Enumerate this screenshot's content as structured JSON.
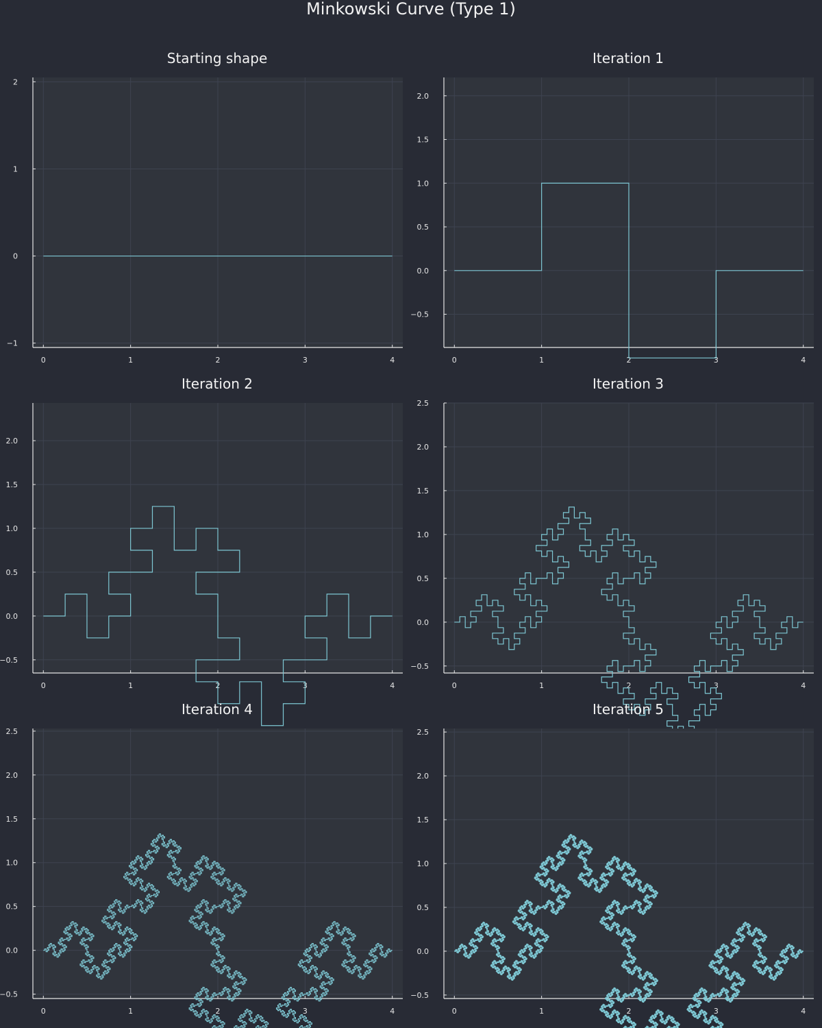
{
  "figure": {
    "title": "Minkowski Curve (Type 1)"
  },
  "colors": {
    "background": "#282b35",
    "plot_area": "#30343c",
    "line": "#7ec8d4",
    "grid": "#3e4350",
    "axis": "#e6e6e6"
  },
  "chart_data": [
    {
      "type": "line",
      "title": "Starting shape",
      "iteration": 0,
      "xlim": [
        -0.12,
        4.12
      ],
      "ylim": [
        -1.05,
        2.05
      ],
      "xticks": [
        0,
        1,
        2,
        3,
        4
      ],
      "xtick_labels": [
        "0",
        "1",
        "2",
        "3",
        "4"
      ],
      "yticks": [
        -1,
        0,
        1,
        2
      ],
      "ytick_labels": [
        "−1",
        "0",
        "1",
        "2"
      ],
      "grid": true,
      "series": [
        {
          "generator": "minkowski-type1",
          "iterations": 0,
          "x_start": 0,
          "x_end": 4
        }
      ]
    },
    {
      "type": "line",
      "title": "Iteration 1",
      "iteration": 1,
      "xlim": [
        -0.12,
        4.12
      ],
      "ylim": [
        -0.88,
        2.21
      ],
      "xticks": [
        0,
        1,
        2,
        3,
        4
      ],
      "xtick_labels": [
        "0",
        "1",
        "2",
        "3",
        "4"
      ],
      "yticks": [
        -0.5,
        0,
        0.5,
        1,
        1.5,
        2
      ],
      "ytick_labels": [
        "−0.5",
        "0.0",
        "0.5",
        "1.0",
        "1.5",
        "2.0"
      ],
      "grid": true,
      "series": [
        {
          "generator": "minkowski-type1",
          "iterations": 1,
          "x_start": 0,
          "x_end": 4
        }
      ]
    },
    {
      "type": "line",
      "title": "Iteration 2",
      "iteration": 2,
      "xlim": [
        -0.12,
        4.12
      ],
      "ylim": [
        -0.65,
        2.43
      ],
      "xticks": [
        0,
        1,
        2,
        3,
        4
      ],
      "xtick_labels": [
        "0",
        "1",
        "2",
        "3",
        "4"
      ],
      "yticks": [
        -0.5,
        0,
        0.5,
        1,
        1.5,
        2
      ],
      "ytick_labels": [
        "−0.5",
        "0.0",
        "0.5",
        "1.0",
        "1.5",
        "2.0"
      ],
      "grid": true,
      "series": [
        {
          "generator": "minkowski-type1",
          "iterations": 2,
          "x_start": 0,
          "x_end": 4
        }
      ]
    },
    {
      "type": "line",
      "title": "Iteration 3",
      "iteration": 3,
      "xlim": [
        -0.12,
        4.12
      ],
      "ylim": [
        -0.58,
        2.5
      ],
      "xticks": [
        0,
        1,
        2,
        3,
        4
      ],
      "xtick_labels": [
        "0",
        "1",
        "2",
        "3",
        "4"
      ],
      "yticks": [
        -0.5,
        0,
        0.5,
        1,
        1.5,
        2,
        2.5
      ],
      "ytick_labels": [
        "−0.5",
        "0.0",
        "0.5",
        "1.0",
        "1.5",
        "2.0",
        "2.5"
      ],
      "grid": true,
      "series": [
        {
          "generator": "minkowski-type1",
          "iterations": 3,
          "x_start": 0,
          "x_end": 4
        }
      ]
    },
    {
      "type": "line",
      "title": "Iteration 4",
      "iteration": 4,
      "xlim": [
        -0.12,
        4.12
      ],
      "ylim": [
        -0.55,
        2.53
      ],
      "xticks": [
        0,
        1,
        2,
        3,
        4
      ],
      "xtick_labels": [
        "0",
        "1",
        "2",
        "3",
        "4"
      ],
      "yticks": [
        -0.5,
        0,
        0.5,
        1,
        1.5,
        2,
        2.5
      ],
      "ytick_labels": [
        "−0.5",
        "0.0",
        "0.5",
        "1.0",
        "1.5",
        "2.0",
        "2.5"
      ],
      "grid": true,
      "series": [
        {
          "generator": "minkowski-type1",
          "iterations": 4,
          "x_start": 0,
          "x_end": 4
        }
      ]
    },
    {
      "type": "line",
      "title": "Iteration 5",
      "iteration": 5,
      "xlim": [
        -0.12,
        4.12
      ],
      "ylim": [
        -0.54,
        2.54
      ],
      "xticks": [
        0,
        1,
        2,
        3,
        4
      ],
      "xtick_labels": [
        "0",
        "1",
        "2",
        "3",
        "4"
      ],
      "yticks": [
        -0.5,
        0,
        0.5,
        1,
        1.5,
        2,
        2.5
      ],
      "ytick_labels": [
        "−0.5",
        "0.0",
        "0.5",
        "1.0",
        "1.5",
        "2.0",
        "2.5"
      ],
      "grid": true,
      "series": [
        {
          "generator": "minkowski-type1",
          "iterations": 5,
          "x_start": 0,
          "x_end": 4
        }
      ]
    }
  ]
}
